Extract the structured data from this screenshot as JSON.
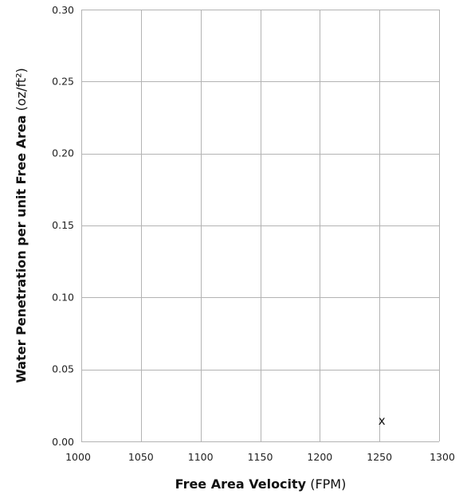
{
  "chart_data": {
    "type": "scatter",
    "xlabel_main": "Free Area Velocity",
    "xlabel_unit": "(FPM)",
    "ylabel_main": "Water Penetration per unit Free Area",
    "ylabel_unit": "(oz/ft²)",
    "xlim": [
      1000,
      1300
    ],
    "ylim": [
      0,
      0.3
    ],
    "x_ticks": [
      {
        "value": 1000,
        "label": "1000"
      },
      {
        "value": 1050,
        "label": "1050"
      },
      {
        "value": 1100,
        "label": "1100"
      },
      {
        "value": 1150,
        "label": "1150"
      },
      {
        "value": 1200,
        "label": "1200"
      },
      {
        "value": 1250,
        "label": "1250"
      },
      {
        "value": 1300,
        "label": "1300"
      }
    ],
    "y_ticks": [
      {
        "value": 0.0,
        "label": "0.00"
      },
      {
        "value": 0.05,
        "label": "0.05"
      },
      {
        "value": 0.1,
        "label": "0.10"
      },
      {
        "value": 0.15,
        "label": "0.15"
      },
      {
        "value": 0.2,
        "label": "0.20"
      },
      {
        "value": 0.25,
        "label": "0.25"
      },
      {
        "value": 0.3,
        "label": "0.30"
      }
    ],
    "grid": true,
    "points": [
      {
        "x": 1250,
        "y": 0.005,
        "marker": "x"
      }
    ],
    "grid_color": "#b3b3b3"
  }
}
